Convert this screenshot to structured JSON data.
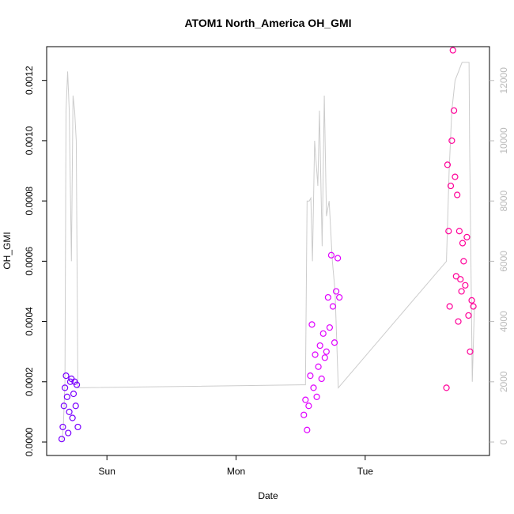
{
  "chart_data": {
    "type": "scatter",
    "title": "ATOM1 North_America OH_GMI",
    "x_label": "Date",
    "y_label": "OH_GMI",
    "xlim": [
      -11.2,
      71.1
    ],
    "xticks": [
      {
        "value": 0,
        "label": "Sun"
      },
      {
        "value": 24,
        "label": "Mon"
      },
      {
        "value": 48,
        "label": "Tue"
      }
    ],
    "ylim": [
      -4.46e-05,
      0.001312
    ],
    "yticks": [
      {
        "value": 0,
        "label": "0.0000"
      },
      {
        "value": 0.0002,
        "label": "0.0002"
      },
      {
        "value": 0.0004,
        "label": "0.0004"
      },
      {
        "value": 0.0006,
        "label": "0.0006"
      },
      {
        "value": 0.0008,
        "label": "0.0008"
      },
      {
        "value": 0.001,
        "label": "0.0010"
      },
      {
        "value": 0.0012,
        "label": "0.0012"
      }
    ],
    "y2lim": [
      -446,
      13123
    ],
    "y2ticks": [
      0,
      2000,
      4000,
      6000,
      8000,
      10000,
      12000
    ],
    "series": [
      {
        "color": "#7a00ff",
        "x": [
          -8.4,
          -8.2,
          -8.0,
          -7.8,
          -7.6,
          -7.4,
          -7.2,
          -7.0,
          -6.8,
          -6.6,
          -6.4,
          -6.2,
          -6.0,
          -5.8,
          -5.6,
          -5.4
        ],
        "values": [
          1e-05,
          5e-05,
          0.00012,
          0.00018,
          0.00022,
          0.00015,
          3e-05,
          0.0001,
          0.0002,
          0.00021,
          8e-05,
          0.00016,
          0.0002,
          0.00012,
          0.00019,
          5e-05
        ]
      },
      {
        "color": "#e000ff",
        "x": [
          36.6,
          36.9,
          37.2,
          37.5,
          37.8,
          38.1,
          38.4,
          38.7,
          39.0,
          39.3,
          39.6,
          39.9,
          40.2,
          40.5,
          40.8,
          41.1,
          41.4,
          41.7,
          42.0,
          42.3,
          42.6,
          42.9,
          43.2
        ],
        "values": [
          9e-05,
          0.00014,
          4e-05,
          0.00012,
          0.00022,
          0.00039,
          0.00018,
          0.00029,
          0.00015,
          0.00025,
          0.00032,
          0.00021,
          0.00036,
          0.00028,
          0.0003,
          0.00048,
          0.00038,
          0.00062,
          0.00045,
          0.00033,
          0.0005,
          0.00061,
          0.00048
        ]
      },
      {
        "color": "#ff0099",
        "x": [
          63.1,
          63.3,
          63.5,
          63.7,
          63.9,
          64.1,
          64.3,
          64.5,
          64.7,
          64.9,
          65.1,
          65.3,
          65.5,
          65.7,
          65.9,
          66.1,
          66.3,
          66.6,
          66.9,
          67.2,
          67.5,
          67.8,
          68.1
        ],
        "values": [
          0.00018,
          0.00092,
          0.0007,
          0.00045,
          0.00085,
          0.001,
          0.0013,
          0.0011,
          0.00088,
          0.00055,
          0.00082,
          0.0004,
          0.0007,
          0.00054,
          0.0005,
          0.00066,
          0.0006,
          0.00052,
          0.00068,
          0.00042,
          0.0003,
          0.00047,
          0.00045
        ]
      },
      {
        "color": "#cccccc",
        "axis": "y2",
        "line": true,
        "x": [
          -8.4,
          -8.1,
          -7.8,
          -7.6,
          -7.3,
          -7.0,
          -6.6,
          -6.3,
          -6.0,
          -5.7,
          -5.4,
          36.9,
          37.2,
          37.6,
          37.9,
          38.2,
          38.6,
          39.2,
          39.5,
          40.0,
          40.4,
          40.8,
          41.3,
          41.9,
          42.4,
          43.0,
          63.1,
          63.6,
          64.1,
          64.7,
          66.0,
          67.3,
          67.4,
          67.9,
          68.3
        ],
        "values": [
          0,
          500,
          2000,
          11000,
          12300,
          11000,
          6000,
          11500,
          11000,
          10000,
          1800,
          1900,
          8000,
          8000,
          8100,
          6000,
          10000,
          8500,
          11000,
          6500,
          11500,
          7500,
          8000,
          6000,
          5000,
          1800,
          6000,
          9000,
          11000,
          12000,
          12600,
          12600,
          10000,
          2000,
          4500
        ]
      }
    ]
  }
}
